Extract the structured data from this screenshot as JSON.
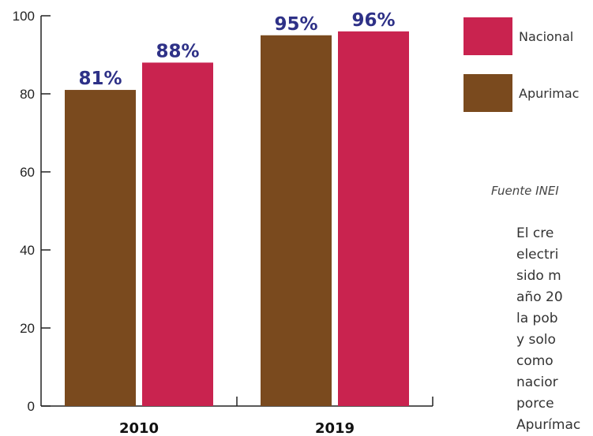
{
  "chart_data": {
    "type": "bar",
    "categories": [
      "2010",
      "2019"
    ],
    "series": [
      {
        "name": "Apurimac",
        "values": [
          81,
          95
        ],
        "color": "#7a4a1e"
      },
      {
        "name": "Nacional",
        "values": [
          88,
          96
        ],
        "color": "#c9234f"
      }
    ],
    "data_labels": [
      [
        "81%",
        "95%"
      ],
      [
        "88%",
        "96%"
      ]
    ],
    "ylim": [
      0,
      100
    ],
    "yticks": [
      0,
      20,
      40,
      60,
      80,
      100
    ],
    "grid": false,
    "legend_placement": "right",
    "legend": [
      {
        "label": "Nacional",
        "color": "#c9234f"
      },
      {
        "label": "Apurimac",
        "color": "#7a4a1e"
      }
    ]
  },
  "source": "Fuente INEI",
  "paragraph_lines": [
    "El cre",
    "electri",
    "sido m",
    "año 20",
    "la pob",
    "y solo",
    "como",
    "nacior",
    "porce",
    "Apurímac"
  ],
  "colors": {
    "label": "#2e3187",
    "axis": "#222222"
  }
}
